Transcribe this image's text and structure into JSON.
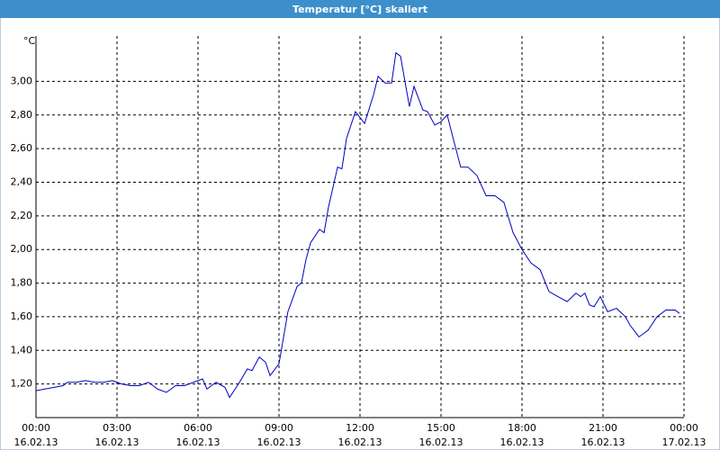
{
  "chart_data": {
    "type": "line",
    "title": "Temperatur [°C] skaliert",
    "unit_label": "°C",
    "x": [
      0,
      0.33,
      0.67,
      1,
      1.17,
      1.5,
      1.83,
      2.17,
      2.5,
      2.83,
      3.17,
      3.5,
      3.83,
      4.17,
      4.5,
      4.83,
      5.17,
      5.5,
      5.83,
      6.17,
      6.33,
      6.67,
      7,
      7.17,
      7.5,
      7.83,
      8,
      8.27,
      8.5,
      8.67,
      9,
      9.33,
      9.67,
      9.83,
      10,
      10.17,
      10.5,
      10.67,
      10.83,
      11.17,
      11.33,
      11.5,
      11.83,
      12.17,
      12.5,
      12.67,
      12.93,
      13.17,
      13.33,
      13.5,
      13.83,
      14,
      14.33,
      14.5,
      14.77,
      15,
      15.23,
      15.5,
      15.73,
      16,
      16.33,
      16.67,
      17,
      17.33,
      17.67,
      18,
      18.33,
      18.67,
      19,
      19.33,
      19.67,
      20,
      20.17,
      20.33,
      20.5,
      20.67,
      20.9,
      21.17,
      21.5,
      21.83,
      22,
      22.33,
      22.67,
      23,
      23.33,
      23.67,
      23.83
    ],
    "series": [
      {
        "name": "Temperatur",
        "color": "#0000c0",
        "values": [
          1.16,
          1.17,
          1.18,
          1.19,
          1.21,
          1.21,
          1.22,
          1.21,
          1.21,
          1.22,
          1.2,
          1.19,
          1.19,
          1.21,
          1.17,
          1.15,
          1.19,
          1.19,
          1.21,
          1.23,
          1.17,
          1.21,
          1.18,
          1.12,
          1.2,
          1.29,
          1.28,
          1.36,
          1.33,
          1.25,
          1.32,
          1.63,
          1.78,
          1.8,
          1.94,
          2.04,
          2.12,
          2.1,
          2.25,
          2.49,
          2.48,
          2.66,
          2.82,
          2.75,
          2.92,
          3.03,
          2.99,
          2.99,
          3.17,
          3.15,
          2.85,
          2.97,
          2.83,
          2.82,
          2.74,
          2.76,
          2.8,
          2.63,
          2.49,
          2.49,
          2.44,
          2.32,
          2.32,
          2.28,
          2.1,
          2.0,
          1.92,
          1.88,
          1.75,
          1.72,
          1.69,
          1.74,
          1.72,
          1.74,
          1.67,
          1.66,
          1.72,
          1.63,
          1.65,
          1.6,
          1.55,
          1.48,
          1.52,
          1.6,
          1.64,
          1.64,
          1.62
        ]
      }
    ],
    "xlim": [
      0,
      24
    ],
    "xticks": [
      {
        "value": 0,
        "label": "00:00\n16.02.13"
      },
      {
        "value": 3,
        "label": "03:00\n16.02.13"
      },
      {
        "value": 6,
        "label": "06:00\n16.02.13"
      },
      {
        "value": 9,
        "label": "09:00\n16.02.13"
      },
      {
        "value": 12,
        "label": "12:00\n16.02.13"
      },
      {
        "value": 15,
        "label": "15:00\n16.02.13"
      },
      {
        "value": 18,
        "label": "18:00\n16.02.13"
      },
      {
        "value": 21,
        "label": "21:00\n16.02.13"
      },
      {
        "value": 24,
        "label": "00:00\n17.02.13"
      }
    ],
    "ylim": [
      1.0,
      3.27
    ],
    "yticks": [
      {
        "value": 1.2,
        "label": "1,20"
      },
      {
        "value": 1.4,
        "label": "1,40"
      },
      {
        "value": 1.6,
        "label": "1,60"
      },
      {
        "value": 1.8,
        "label": "1,80"
      },
      {
        "value": 2.0,
        "label": "2,00"
      },
      {
        "value": 2.2,
        "label": "2,20"
      },
      {
        "value": 2.4,
        "label": "2,40"
      },
      {
        "value": 2.6,
        "label": "2,60"
      },
      {
        "value": 2.8,
        "label": "2,80"
      },
      {
        "value": 3.0,
        "label": "3,00"
      }
    ],
    "grid": true
  }
}
